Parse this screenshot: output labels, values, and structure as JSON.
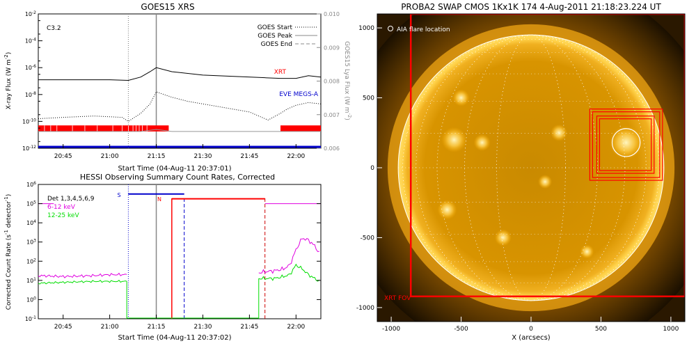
{
  "colors": {
    "red": "#ff0000",
    "blue": "#0000cc",
    "magenta": "#e000e0",
    "green": "#00dd00",
    "sun": "#e6a000",
    "sun_bright": "#ffcc33",
    "black": "#000000",
    "gray": "#999999"
  },
  "chart_data": [
    {
      "id": "goes",
      "type": "line",
      "title": "GOES15 XRS",
      "flare_class": "C3.2",
      "xlabel": "Start Time (04-Aug-11 20:37:01)",
      "ylabel_left": "X-ray Flux (W m",
      "ylabel_left_sup": "-2",
      "ylabel_right": "GOES15 Lya Flux (W m",
      "ylabel_right_sup": "-2",
      "x_ticks": [
        "20:45",
        "21:00",
        "21:15",
        "21:30",
        "21:45",
        "22:00"
      ],
      "x_tick_minutes": [
        45,
        60,
        75,
        90,
        105,
        120
      ],
      "xlim_minutes": [
        37,
        128
      ],
      "ylim_log": [
        -12,
        -2
      ],
      "y_ticks": [
        {
          "b": "10",
          "e": "-2",
          "v": -2
        },
        {
          "b": "10",
          "e": "-4",
          "v": -4
        },
        {
          "b": "10",
          "e": "-6",
          "v": -6
        },
        {
          "b": "10",
          "e": "-8",
          "v": -8
        },
        {
          "b": "10",
          "e": "-10",
          "v": -10
        },
        {
          "b": "10",
          "e": "-12",
          "v": -12
        }
      ],
      "y2lim": [
        0.006,
        0.01
      ],
      "y2_ticks": [
        "0.010",
        "0.009",
        "0.008",
        "0.007",
        "0.006"
      ],
      "y2_tick_values": [
        0.01,
        0.009,
        0.008,
        0.007,
        0.006
      ],
      "legend": [
        {
          "label": "GOES Start",
          "style": "dotted"
        },
        {
          "label": "GOES Peak",
          "style": "solid"
        },
        {
          "label": "GOES End",
          "style": "dashed"
        }
      ],
      "event_lines": {
        "start": 66,
        "peak": 75
      },
      "series_labels": {
        "xrt": "XRT",
        "eve": "EVE MEGS-A"
      },
      "series": [
        {
          "name": "GOES long",
          "style": "solid",
          "color": "#000000",
          "x": [
            37,
            50,
            60,
            66,
            70,
            73,
            75,
            80,
            90,
            100,
            110,
            115,
            120,
            124,
            128
          ],
          "y": [
            -6.9,
            -6.9,
            -6.9,
            -6.95,
            -6.7,
            -6.3,
            -6.0,
            -6.3,
            -6.55,
            -6.65,
            -6.75,
            -6.8,
            -6.8,
            -6.6,
            -6.7
          ]
        },
        {
          "name": "GOES short",
          "style": "dotted",
          "color": "#000000",
          "x": [
            37,
            45,
            55,
            64,
            66,
            68,
            70,
            73,
            75,
            80,
            85,
            90,
            95,
            100,
            105,
            108,
            111,
            115,
            117,
            120,
            124,
            128
          ],
          "y": [
            -9.8,
            -9.7,
            -9.6,
            -9.7,
            -10.0,
            -9.7,
            -9.4,
            -8.7,
            -7.8,
            -8.2,
            -8.5,
            -8.7,
            -8.9,
            -9.1,
            -9.3,
            -9.6,
            -9.9,
            -9.4,
            -9.1,
            -8.8,
            -8.6,
            -8.7
          ]
        },
        {
          "name": "Lya flux",
          "style": "solid",
          "color": "#999999",
          "x": [
            37,
            70,
            75,
            80,
            128
          ],
          "y": [
            -10.75,
            -10.75,
            -10.6,
            -10.75,
            -10.75
          ]
        }
      ],
      "coverage_bars": [
        [
          37,
          79
        ],
        [
          115,
          128
        ]
      ],
      "baseline_blue": -12
    },
    {
      "id": "hessi",
      "type": "line",
      "title": "HESSI Observing Summary Count Rates, Corrected",
      "xlabel": "Start Time (04-Aug-11 20:37:02)",
      "ylabel": "Corrected Count Rate (s",
      "ylabel_sup1": "-1",
      "ylabel_mid": " detector",
      "ylabel_sup2": "-1",
      "x_ticks": [
        "20:45",
        "21:00",
        "21:15",
        "21:30",
        "21:45",
        "22:00"
      ],
      "x_tick_minutes": [
        45,
        60,
        75,
        90,
        105,
        120
      ],
      "xlim_minutes": [
        37,
        128
      ],
      "ylim_log": [
        -1,
        6
      ],
      "y_ticks": [
        {
          "b": "10",
          "e": "6",
          "v": 6
        },
        {
          "b": "10",
          "e": "5",
          "v": 5
        },
        {
          "b": "10",
          "e": "4",
          "v": 4
        },
        {
          "b": "10",
          "e": "3",
          "v": 3
        },
        {
          "b": "10",
          "e": "2",
          "v": 2
        },
        {
          "b": "10",
          "e": "1",
          "v": 1
        },
        {
          "b": "10",
          "e": "0",
          "v": 0
        },
        {
          "b": "10",
          "e": "-1",
          "v": -1
        }
      ],
      "legend": [
        {
          "label": "Det 1,3,4,5,6,9",
          "color": "#000000"
        },
        {
          "label": "6-12 keV",
          "color": "#e000e0"
        },
        {
          "label": "12-25 keV",
          "color": "#00dd00"
        }
      ],
      "markers": {
        "s_label": "S",
        "n_label": "N",
        "s_x": 66,
        "n_x": 80
      },
      "event_lines": {
        "start": 66,
        "peak": 75,
        "blue_dashed": 84,
        "red_solid": 80,
        "red_dashed": 110
      },
      "series": [
        {
          "name": "6-12 keV",
          "color": "#e000e0",
          "x": [
            37,
            45,
            55,
            60,
            64,
            65.5,
            108,
            110,
            113,
            116,
            118,
            120,
            122,
            124,
            126,
            128
          ],
          "y": [
            1.25,
            1.2,
            1.25,
            1.3,
            1.3,
            1.3,
            1.4,
            1.45,
            1.5,
            1.6,
            1.8,
            2.6,
            3.2,
            3.1,
            2.8,
            2.3
          ]
        },
        {
          "name": "12-25 keV",
          "color": "#00dd00",
          "x": [
            37,
            45,
            55,
            60,
            64,
            65.5,
            108,
            110,
            113,
            116,
            118,
            120,
            122,
            124,
            126,
            128
          ],
          "y": [
            0.85,
            0.9,
            0.95,
            0.95,
            0.95,
            0.95,
            1.1,
            1.1,
            1.1,
            1.2,
            1.3,
            1.8,
            1.6,
            1.3,
            1.1,
            0.9
          ]
        },
        {
          "name": "6-12 keV attenuated",
          "color": "#e000e0",
          "x": [
            37,
            42,
            110,
            128
          ],
          "y": [
            5.0,
            5.0,
            5.0,
            5.0
          ]
        }
      ],
      "attenuator_bars": [
        {
          "color": "#0000cc",
          "x": [
            66,
            84
          ],
          "y": 5.5
        },
        {
          "color": "#ff0000",
          "x": [
            80,
            110
          ],
          "y": 5.25
        }
      ]
    },
    {
      "id": "swap",
      "type": "image",
      "title": "PROBA2 SWAP CMOS 1Kx1K 174   4-Aug-2011 21:18:23.224 UT",
      "xlabel": "X (arcsecs)",
      "x_ticks": [
        "-1000",
        "-500",
        "0",
        "500",
        "1000"
      ],
      "x_tick_values": [
        -1000,
        -500,
        0,
        500,
        1000
      ],
      "y_ticks": [
        "1000",
        "500",
        "0",
        "-500",
        "-1000"
      ],
      "y_tick_values": [
        1000,
        500,
        0,
        -500,
        -1000
      ],
      "xlim": [
        -1100,
        1100
      ],
      "ylim": [
        -1100,
        1100
      ],
      "solar_radius": 950,
      "annotation_aia": "AIA flare location",
      "annotation_xrt": "XRT FOV",
      "xrt_fov": {
        "x0": -860,
        "x1": 1100,
        "y0": -920,
        "y1": 1100
      },
      "flare_boxes": [
        {
          "x0": 420,
          "x1": 940,
          "y0": -90,
          "y1": 420
        },
        {
          "x0": 440,
          "x1": 920,
          "y0": -70,
          "y1": 400
        },
        {
          "x0": 470,
          "x1": 880,
          "y0": -40,
          "y1": 370
        },
        {
          "x0": 490,
          "x1": 860,
          "y0": -20,
          "y1": 350
        }
      ],
      "flare_circle": {
        "x": 680,
        "y": 180,
        "r": 100
      }
    }
  ]
}
